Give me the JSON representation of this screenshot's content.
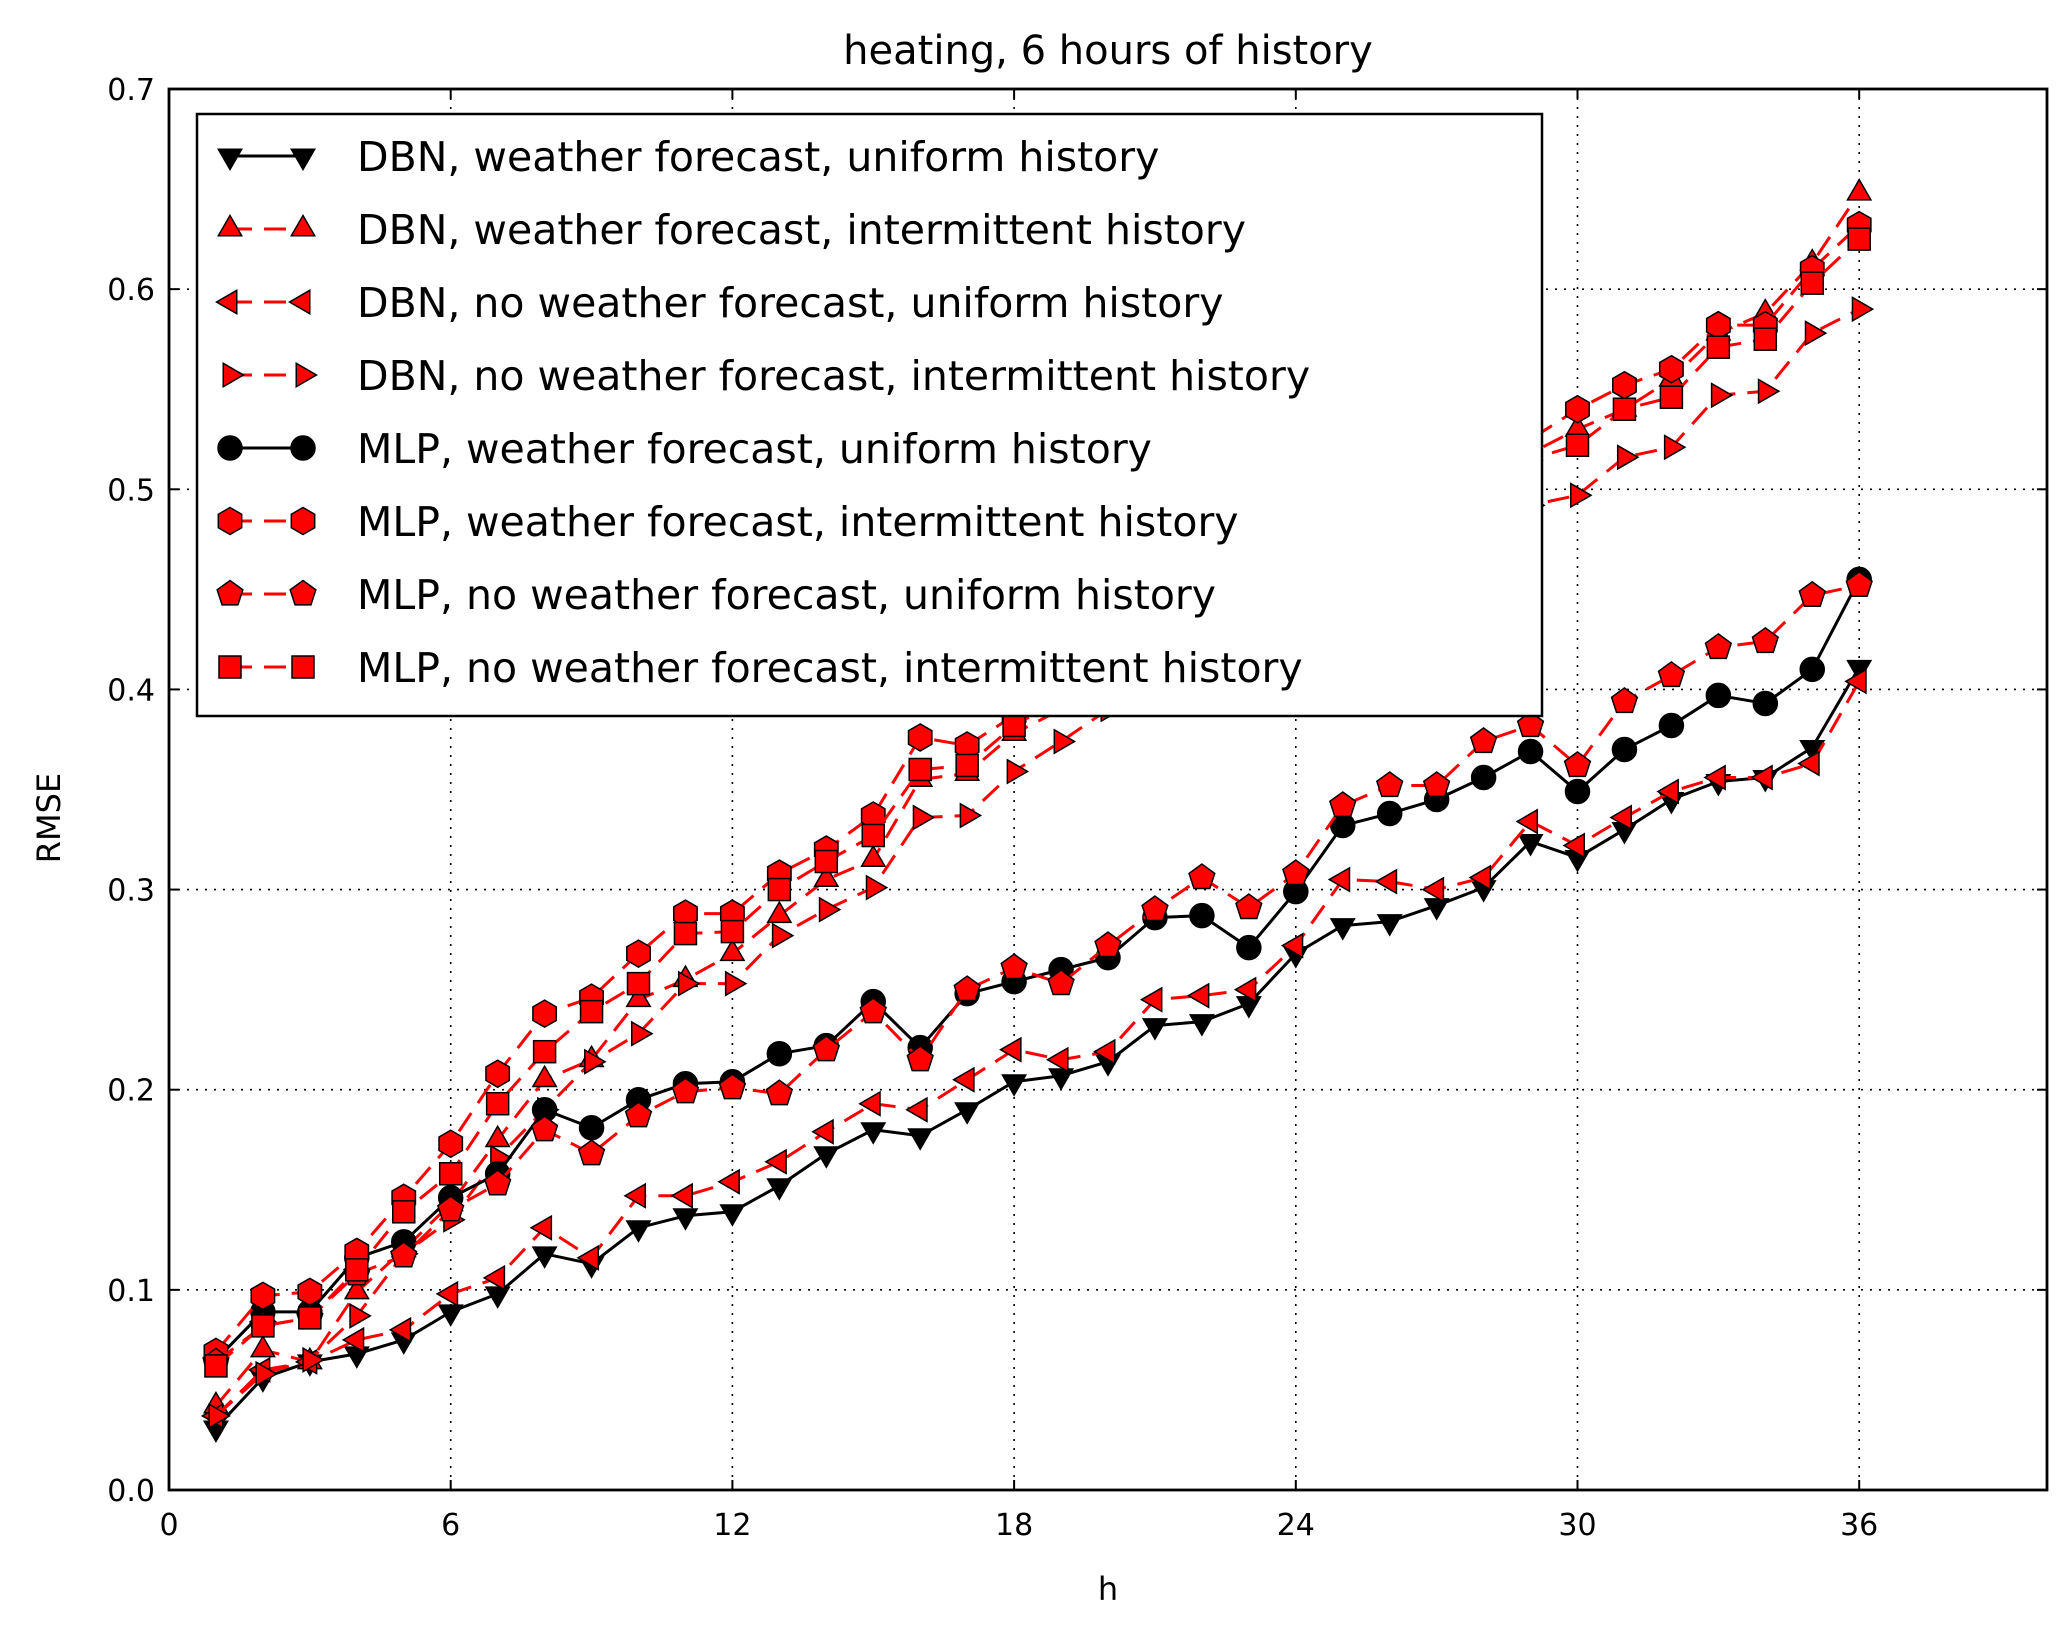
{
  "chart_data": {
    "type": "line",
    "title": "heating, 6 hours of history",
    "xlabel": "h",
    "ylabel": "RMSE",
    "xlim": [
      0,
      40
    ],
    "ylim": [
      0.0,
      0.7
    ],
    "xticks": [
      0,
      6,
      12,
      18,
      24,
      30,
      36
    ],
    "xtick_labels": [
      "0",
      "6",
      "12",
      "18",
      "24",
      "30",
      "36"
    ],
    "yticks": [
      0.0,
      0.1,
      0.2,
      0.3,
      0.4,
      0.5,
      0.6,
      0.7
    ],
    "ytick_labels": [
      "0.0",
      "0.1",
      "0.2",
      "0.3",
      "0.4",
      "0.5",
      "0.6",
      "0.7"
    ],
    "grid": true,
    "legend_position": "top-left",
    "x": [
      1,
      2,
      3,
      4,
      5,
      6,
      7,
      8,
      9,
      10,
      11,
      12,
      13,
      14,
      15,
      16,
      17,
      18,
      19,
      20,
      21,
      22,
      23,
      24,
      25,
      26,
      27,
      28,
      29,
      30,
      31,
      32,
      33,
      34,
      35,
      36
    ],
    "series": [
      {
        "name": "DBN, weather forecast, uniform history",
        "marker": "triangle-down",
        "line": "solid",
        "color": "#000000",
        "values": [
          0.031,
          0.056,
          0.064,
          0.068,
          0.075,
          0.089,
          0.098,
          0.118,
          0.113,
          0.131,
          0.137,
          0.139,
          0.152,
          0.168,
          0.18,
          0.177,
          0.19,
          0.204,
          0.207,
          0.214,
          0.232,
          0.234,
          0.243,
          0.268,
          0.282,
          0.284,
          0.292,
          0.301,
          0.324,
          0.316,
          0.33,
          0.345,
          0.354,
          0.356,
          0.371,
          0.411
        ]
      },
      {
        "name": "DBN, weather forecast, intermittent history",
        "marker": "triangle-up",
        "line": "dashed",
        "color": "#ff0000",
        "values": [
          0.042,
          0.07,
          0.064,
          0.099,
          0.12,
          0.143,
          0.175,
          0.205,
          0.215,
          0.245,
          0.255,
          0.268,
          0.287,
          0.305,
          0.315,
          0.355,
          0.358,
          0.378,
          0.39,
          0.41,
          0.425,
          0.44,
          0.455,
          0.465,
          0.478,
          0.49,
          0.5,
          0.508,
          0.518,
          0.53,
          0.54,
          0.555,
          0.578,
          0.588,
          0.613,
          0.648
        ]
      },
      {
        "name": "DBN, no weather forecast, uniform history",
        "marker": "triangle-left",
        "line": "dashed",
        "color": "#ff0000",
        "values": [
          0.037,
          0.06,
          0.064,
          0.075,
          0.08,
          0.098,
          0.106,
          0.131,
          0.116,
          0.147,
          0.147,
          0.154,
          0.164,
          0.179,
          0.193,
          0.19,
          0.205,
          0.22,
          0.215,
          0.219,
          0.245,
          0.247,
          0.25,
          0.272,
          0.305,
          0.304,
          0.3,
          0.306,
          0.334,
          0.322,
          0.336,
          0.349,
          0.356,
          0.356,
          0.363,
          0.404
        ]
      },
      {
        "name": "DBN, no weather forecast, intermittent history",
        "marker": "triangle-right",
        "line": "dashed",
        "color": "#ff0000",
        "values": [
          0.037,
          0.058,
          0.065,
          0.087,
          0.118,
          0.135,
          0.166,
          0.19,
          0.214,
          0.228,
          0.253,
          0.253,
          0.277,
          0.29,
          0.301,
          0.336,
          0.337,
          0.359,
          0.374,
          0.39,
          0.405,
          0.42,
          0.435,
          0.45,
          0.462,
          0.47,
          0.478,
          0.486,
          0.492,
          0.497,
          0.516,
          0.521,
          0.547,
          0.549,
          0.578,
          0.59
        ]
      },
      {
        "name": "MLP, weather forecast, uniform history",
        "marker": "circle",
        "line": "solid",
        "color": "#000000",
        "values": [
          0.065,
          0.089,
          0.089,
          0.116,
          0.124,
          0.146,
          0.158,
          0.19,
          0.181,
          0.195,
          0.203,
          0.204,
          0.218,
          0.222,
          0.244,
          0.221,
          0.248,
          0.254,
          0.26,
          0.266,
          0.286,
          0.287,
          0.271,
          0.299,
          0.332,
          0.338,
          0.345,
          0.356,
          0.369,
          0.349,
          0.37,
          0.382,
          0.397,
          0.393,
          0.41,
          0.455
        ]
      },
      {
        "name": "MLP, weather forecast, intermittent history",
        "marker": "hexagon",
        "line": "dashed",
        "color": "#ff0000",
        "values": [
          0.069,
          0.097,
          0.099,
          0.119,
          0.146,
          0.173,
          0.208,
          0.238,
          0.246,
          0.268,
          0.288,
          0.288,
          0.308,
          0.32,
          0.337,
          0.376,
          0.372,
          0.387,
          0.4,
          0.415,
          0.43,
          0.445,
          0.46,
          0.475,
          0.485,
          0.495,
          0.505,
          0.515,
          0.525,
          0.54,
          0.552,
          0.56,
          0.582,
          0.582,
          0.61,
          0.632
        ]
      },
      {
        "name": "MLP, no weather forecast, uniform history",
        "marker": "pentagon",
        "line": "dashed",
        "color": "#ff0000",
        "values": [
          0.064,
          0.082,
          0.086,
          0.108,
          0.117,
          0.14,
          0.153,
          0.18,
          0.168,
          0.187,
          0.199,
          0.201,
          0.198,
          0.22,
          0.239,
          0.215,
          0.25,
          0.261,
          0.253,
          0.272,
          0.29,
          0.306,
          0.291,
          0.308,
          0.342,
          0.352,
          0.352,
          0.374,
          0.382,
          0.362,
          0.394,
          0.407,
          0.421,
          0.424,
          0.447,
          0.452
        ]
      },
      {
        "name": "MLP, no weather forecast, intermittent history",
        "marker": "square",
        "line": "dashed",
        "color": "#ff0000",
        "values": [
          0.062,
          0.082,
          0.086,
          0.11,
          0.139,
          0.158,
          0.193,
          0.219,
          0.239,
          0.253,
          0.278,
          0.279,
          0.3,
          0.314,
          0.327,
          0.36,
          0.362,
          0.382,
          0.395,
          0.41,
          0.425,
          0.44,
          0.455,
          0.47,
          0.48,
          0.49,
          0.5,
          0.51,
          0.515,
          0.522,
          0.54,
          0.546,
          0.571,
          0.575,
          0.603,
          0.625
        ]
      }
    ]
  }
}
